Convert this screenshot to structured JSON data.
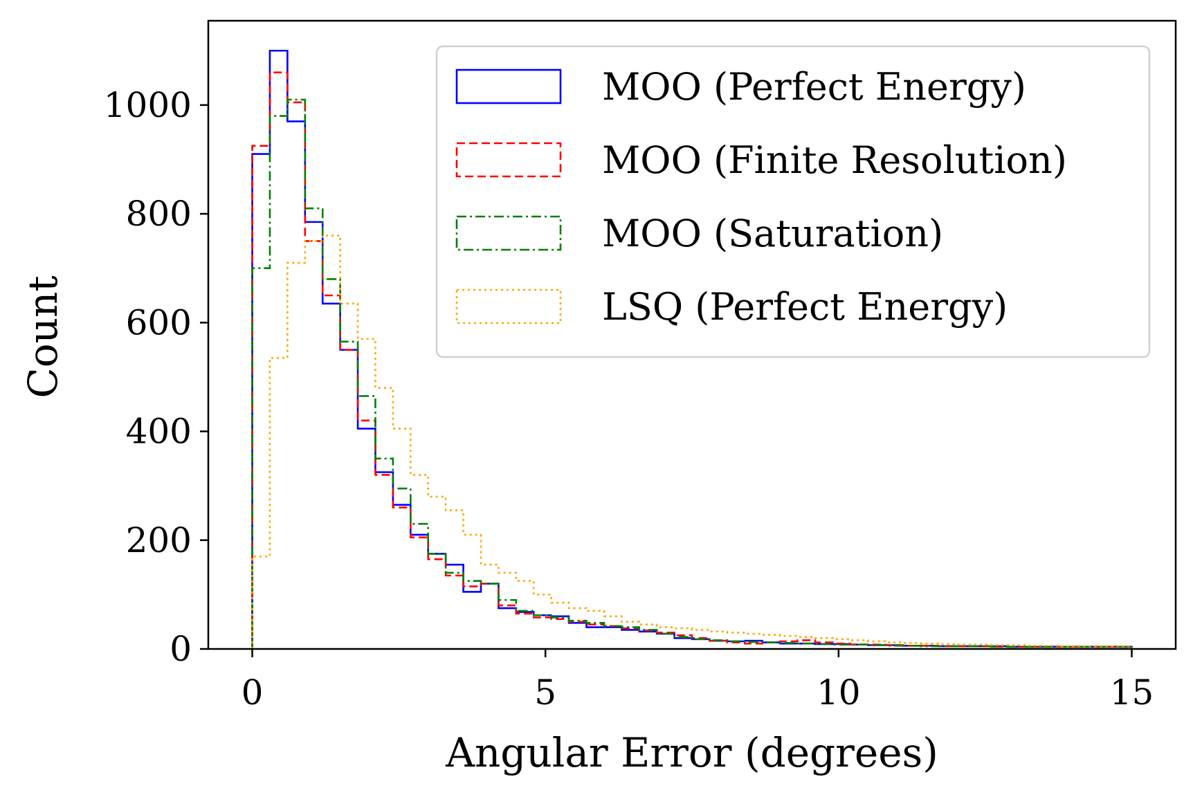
{
  "chart_data": {
    "type": "histogram",
    "xlabel": "Angular Error (degrees)",
    "ylabel": "Count",
    "xlim": [
      -0.75,
      15.75
    ],
    "ylim": [
      0,
      1155
    ],
    "xticks": [
      0,
      5,
      10,
      15
    ],
    "yticks": [
      0,
      200,
      400,
      600,
      800,
      1000
    ],
    "bin_width": 0.3,
    "bins_start": 0,
    "legend_position": "upper right",
    "grid": false,
    "series": [
      {
        "name": "MOO (Perfect Energy)",
        "color": "#0000ff",
        "linestyle": "solid",
        "values": [
          910,
          1100,
          970,
          785,
          635,
          550,
          405,
          325,
          265,
          210,
          175,
          155,
          105,
          120,
          75,
          68,
          62,
          60,
          48,
          40,
          40,
          35,
          32,
          28,
          20,
          18,
          15,
          14,
          15,
          12,
          10,
          10,
          9,
          9,
          8,
          7,
          7,
          6,
          6,
          5,
          5,
          5,
          5,
          4,
          4,
          4,
          4,
          4,
          4,
          4
        ]
      },
      {
        "name": "MOO (Finite Resolution)",
        "color": "#ff0000",
        "linestyle": "dashed",
        "values": [
          925,
          1060,
          1005,
          750,
          650,
          550,
          420,
          320,
          260,
          205,
          165,
          135,
          115,
          120,
          80,
          65,
          58,
          55,
          50,
          45,
          42,
          38,
          34,
          30,
          25,
          20,
          15,
          12,
          10,
          12,
          14,
          16,
          12,
          10,
          8,
          8,
          7,
          6,
          6,
          5,
          5,
          5,
          4,
          4,
          4,
          4,
          4,
          4,
          4,
          4
        ]
      },
      {
        "name": "MOO (Saturation)",
        "color": "#008000",
        "linestyle": "dashdot",
        "values": [
          700,
          980,
          1010,
          810,
          680,
          565,
          465,
          350,
          295,
          230,
          175,
          140,
          125,
          120,
          90,
          70,
          62,
          58,
          52,
          48,
          42,
          40,
          35,
          28,
          22,
          18,
          16,
          14,
          13,
          12,
          11,
          10,
          9,
          8,
          8,
          7,
          6,
          6,
          5,
          5,
          5,
          5,
          4,
          4,
          4,
          4,
          4,
          4,
          4,
          4
        ]
      },
      {
        "name": "LSQ (Perfect Energy)",
        "color": "#ffa500",
        "linestyle": "dotted",
        "values": [
          170,
          535,
          710,
          750,
          760,
          635,
          570,
          480,
          405,
          320,
          280,
          255,
          210,
          155,
          140,
          125,
          100,
          85,
          75,
          70,
          60,
          50,
          45,
          40,
          38,
          35,
          32,
          30,
          28,
          26,
          24,
          22,
          20,
          18,
          16,
          14,
          12,
          11,
          10,
          9,
          8,
          8,
          7,
          7,
          6,
          6,
          5,
          5,
          5,
          5
        ]
      }
    ]
  }
}
